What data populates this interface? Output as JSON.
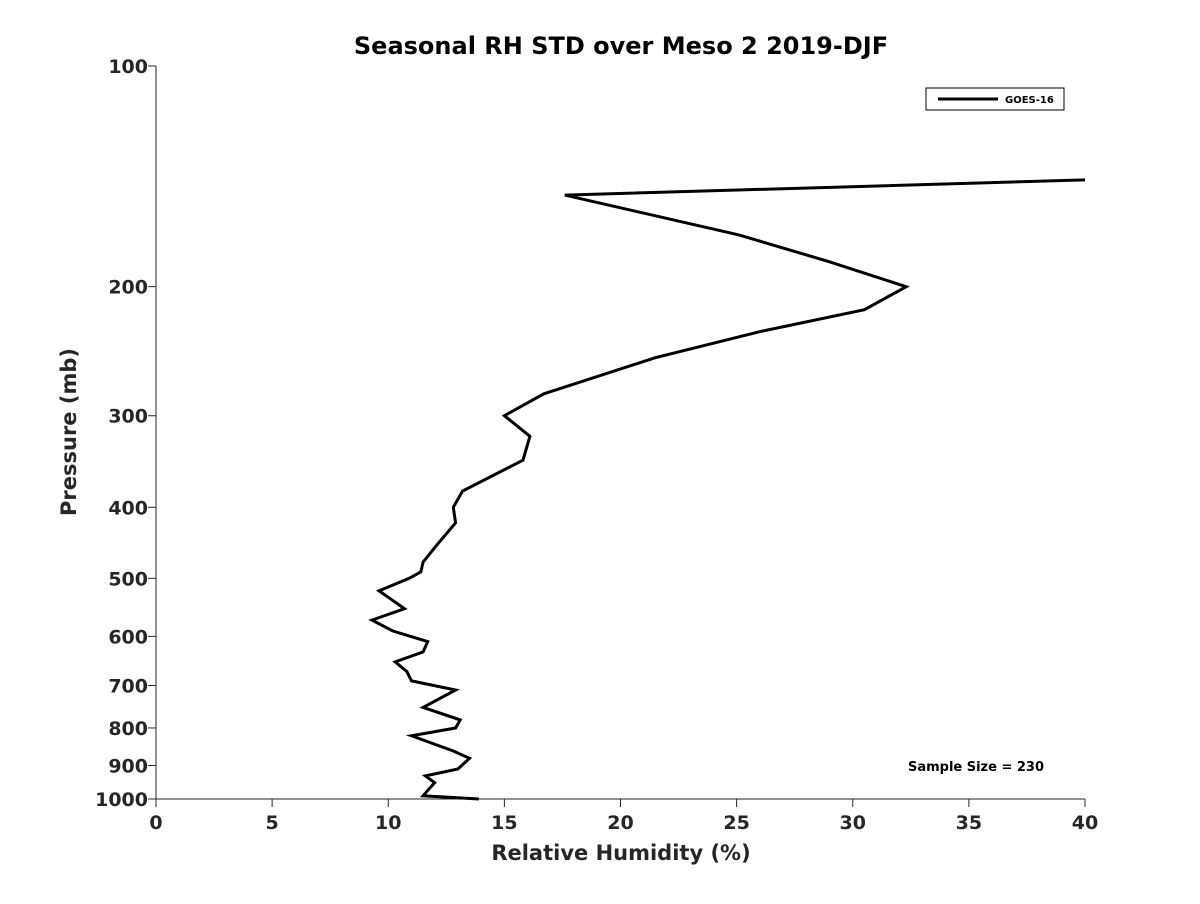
{
  "chart_data": {
    "type": "line",
    "title": "Seasonal RH STD over Meso 2  2019-DJF",
    "xlabel": "Relative Humidity (%)",
    "ylabel": "Pressure (mb)",
    "xlim": [
      0,
      40
    ],
    "ylim": [
      100,
      1000
    ],
    "y_scale": "log",
    "y_reversed": true,
    "grid": false,
    "legend_position": "top-right",
    "x_ticks": [
      0,
      5,
      10,
      15,
      20,
      25,
      30,
      35,
      40
    ],
    "y_ticks": [
      100,
      200,
      300,
      400,
      500,
      600,
      700,
      800,
      900,
      1000
    ],
    "annotation": "Sample Size = 230",
    "series": [
      {
        "name": "GOES-16",
        "color": "#000000",
        "x": [
          40.0,
          17.6,
          25.1,
          29.0,
          32.3,
          30.5,
          26.1,
          21.5,
          16.7,
          15.0,
          16.1,
          15.8,
          13.2,
          12.8,
          12.9,
          12.1,
          11.5,
          11.4,
          10.9,
          9.6,
          10.7,
          9.3,
          10.2,
          11.7,
          11.5,
          10.3,
          10.8,
          11.0,
          12.9,
          11.5,
          13.1,
          12.9,
          11.0,
          12.8,
          13.5,
          13.0,
          11.6,
          12.0,
          11.8,
          11.5,
          13.9
        ],
        "y": [
          143,
          150,
          170,
          185,
          200,
          215,
          230,
          250,
          280,
          300,
          320,
          345,
          380,
          400,
          420,
          450,
          475,
          490,
          500,
          520,
          550,
          570,
          590,
          610,
          630,
          650,
          670,
          690,
          710,
          750,
          780,
          800,
          820,
          860,
          880,
          910,
          930,
          950,
          965,
          990,
          1000
        ]
      }
    ]
  }
}
